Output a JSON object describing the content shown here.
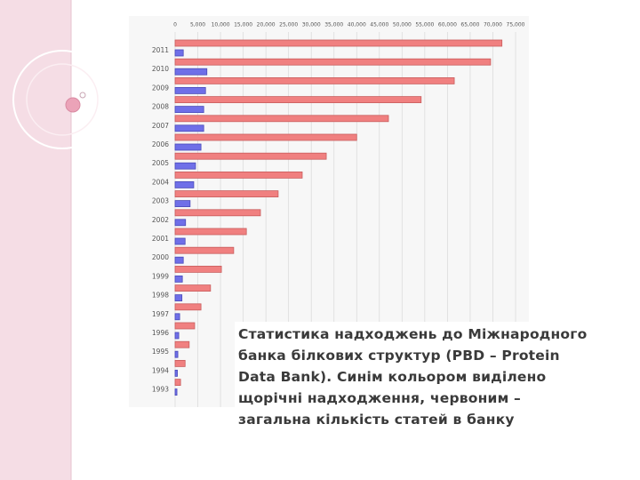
{
  "chart_data": {
    "type": "barh",
    "categories": [
      "2011",
      "2010",
      "2009",
      "2008",
      "2007",
      "2006",
      "2005",
      "2004",
      "2003",
      "2002",
      "2001",
      "2000",
      "1999",
      "1998",
      "1997",
      "1996",
      "1995",
      "1994",
      "1993"
    ],
    "series": [
      {
        "color": "#f08080",
        "values": [
          72000,
          69500,
          61500,
          54200,
          47000,
          40000,
          33300,
          28000,
          22700,
          18800,
          15700,
          12900,
          10200,
          7800,
          5700,
          4300,
          3100,
          2200,
          1200
        ]
      },
      {
        "color": "#6f6fe8",
        "values": [
          1800,
          7000,
          6700,
          6300,
          6300,
          5700,
          4500,
          4100,
          3300,
          2300,
          2200,
          1800,
          1600,
          1500,
          1000,
          800,
          600,
          500,
          400
        ]
      }
    ],
    "xlim": [
      0,
      75000
    ],
    "xticks": [
      0,
      {
        "value": 5000,
        "label": "5,000"
      },
      {
        "value": 10000,
        "label": "10,000"
      },
      {
        "value": 15000,
        "label": "15,000"
      },
      {
        "value": 20000,
        "label": "20,000"
      },
      {
        "value": 25000,
        "label": "25,000"
      },
      {
        "value": 30000,
        "label": "30,000"
      },
      {
        "value": 35000,
        "label": "35,000"
      },
      {
        "value": 40000,
        "label": "40,000"
      },
      {
        "value": 45000,
        "label": "45,000"
      },
      {
        "value": 50000,
        "label": "50,000"
      },
      {
        "value": 55000,
        "label": "55,000"
      },
      {
        "value": 60000,
        "label": "60,000"
      },
      {
        "value": 65000,
        "label": "65,000"
      },
      {
        "value": 70000,
        "label": "70,000"
      },
      {
        "value": 75000,
        "label": "75,000"
      }
    ],
    "grid": true,
    "annotation": "Статистика надходжень до Міжнародного банка білкових структур (PBD – Protein Data Bank). Синім кольором виділено щорічні надходження, червоним – загальна кількість статей в банку"
  }
}
